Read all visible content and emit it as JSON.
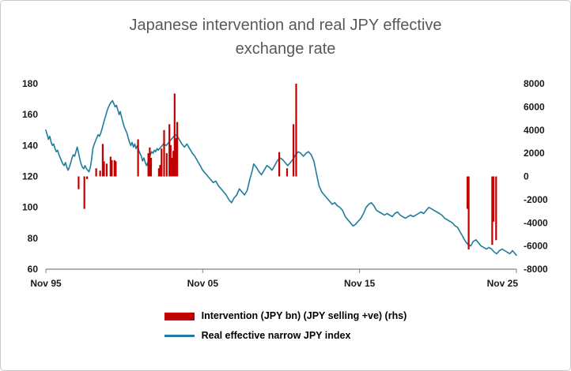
{
  "chart_data": {
    "type": "combo",
    "title": "Japanese intervention and real JPY effective exchange rate",
    "title_lines": [
      "Japanese intervention and real JPY effective",
      "exchange rate"
    ],
    "grid": false,
    "legend_position": "bottom",
    "colors": {
      "bar": "#C00000",
      "line": "#1F7C9C",
      "title_text": "#595959",
      "axis_text": "#1A1A1A"
    },
    "x_axis": {
      "range": [
        1995.8333,
        2025.8333
      ],
      "ticks": [
        {
          "x": 1995.8333,
          "label": "Nov 95"
        },
        {
          "x": 2005.8333,
          "label": "Nov 05"
        },
        {
          "x": 2015.8333,
          "label": "Nov 15"
        },
        {
          "x": 2025.8333,
          "label": "Nov 25"
        }
      ]
    },
    "left_axis": {
      "range": [
        60,
        180
      ],
      "ticks": [
        60,
        80,
        100,
        120,
        140,
        160,
        180
      ]
    },
    "right_axis": {
      "range": [
        -8000,
        8000
      ],
      "ticks": [
        -8000,
        -6000,
        -4000,
        -2000,
        0,
        2000,
        4000,
        6000,
        8000
      ]
    },
    "series": [
      {
        "name": "Intervention (JPY bn) (JPY selling +ve) (rhs)",
        "type": "bar",
        "axis": "right",
        "color": "#C00000",
        "points": [
          [
            1997.92,
            -1100
          ],
          [
            1998.29,
            -2800
          ],
          [
            1998.46,
            -230
          ],
          [
            1999.04,
            700
          ],
          [
            1999.29,
            500
          ],
          [
            1999.46,
            2800
          ],
          [
            1999.54,
            1300
          ],
          [
            1999.71,
            1100
          ],
          [
            1999.96,
            1700
          ],
          [
            2000.04,
            1400
          ],
          [
            2000.21,
            1400
          ],
          [
            2000.29,
            1300
          ],
          [
            2001.71,
            3200
          ],
          [
            2002.37,
            2000
          ],
          [
            2002.46,
            2500
          ],
          [
            2002.54,
            1600
          ],
          [
            2003.04,
            700
          ],
          [
            2003.12,
            1000
          ],
          [
            2003.21,
            2400
          ],
          [
            2003.37,
            4000
          ],
          [
            2003.54,
            2000
          ],
          [
            2003.71,
            4500
          ],
          [
            2003.79,
            2700
          ],
          [
            2003.87,
            1600
          ],
          [
            2003.96,
            2200
          ],
          [
            2004.04,
            7150
          ],
          [
            2004.12,
            3300
          ],
          [
            2004.21,
            4700
          ],
          [
            2010.71,
            2100
          ],
          [
            2011.21,
            700
          ],
          [
            2011.62,
            4500
          ],
          [
            2011.79,
            8000
          ],
          [
            2022.71,
            -2800
          ],
          [
            2022.79,
            -6300
          ],
          [
            2024.29,
            -5900
          ],
          [
            2024.37,
            -3900
          ],
          [
            2024.54,
            -5500
          ]
        ]
      },
      {
        "name": "Real effective narrow JPY index",
        "type": "line",
        "axis": "left",
        "color": "#1F7C9C",
        "points": [
          [
            1995.83,
            150
          ],
          [
            1995.92,
            147
          ],
          [
            1996.0,
            144
          ],
          [
            1996.08,
            146
          ],
          [
            1996.17,
            142
          ],
          [
            1996.25,
            140
          ],
          [
            1996.33,
            141
          ],
          [
            1996.42,
            138
          ],
          [
            1996.5,
            136
          ],
          [
            1996.58,
            137
          ],
          [
            1996.67,
            134
          ],
          [
            1996.75,
            132
          ],
          [
            1996.83,
            130
          ],
          [
            1996.92,
            128
          ],
          [
            1997.0,
            127
          ],
          [
            1997.08,
            129
          ],
          [
            1997.17,
            126
          ],
          [
            1997.25,
            124
          ],
          [
            1997.33,
            126
          ],
          [
            1997.42,
            129
          ],
          [
            1997.5,
            132
          ],
          [
            1997.58,
            134
          ],
          [
            1997.67,
            133
          ],
          [
            1997.75,
            136
          ],
          [
            1997.83,
            139
          ],
          [
            1997.92,
            135
          ],
          [
            1998.0,
            131
          ],
          [
            1998.08,
            128
          ],
          [
            1998.17,
            126
          ],
          [
            1998.25,
            125
          ],
          [
            1998.33,
            127
          ],
          [
            1998.42,
            125
          ],
          [
            1998.5,
            124
          ],
          [
            1998.58,
            123
          ],
          [
            1998.67,
            126
          ],
          [
            1998.75,
            131
          ],
          [
            1998.83,
            138
          ],
          [
            1998.92,
            141
          ],
          [
            1999.0,
            143
          ],
          [
            1999.08,
            145
          ],
          [
            1999.17,
            147
          ],
          [
            1999.25,
            146
          ],
          [
            1999.33,
            148
          ],
          [
            1999.42,
            151
          ],
          [
            1999.5,
            154
          ],
          [
            1999.58,
            157
          ],
          [
            1999.67,
            160
          ],
          [
            1999.75,
            163
          ],
          [
            1999.83,
            165
          ],
          [
            1999.92,
            167
          ],
          [
            2000.0,
            168
          ],
          [
            2000.08,
            169
          ],
          [
            2000.17,
            167
          ],
          [
            2000.25,
            165
          ],
          [
            2000.33,
            166
          ],
          [
            2000.42,
            163
          ],
          [
            2000.5,
            160
          ],
          [
            2000.58,
            162
          ],
          [
            2000.67,
            158
          ],
          [
            2000.75,
            155
          ],
          [
            2000.83,
            152
          ],
          [
            2000.92,
            150
          ],
          [
            2001.0,
            148
          ],
          [
            2001.08,
            145
          ],
          [
            2001.17,
            142
          ],
          [
            2001.25,
            140
          ],
          [
            2001.33,
            142
          ],
          [
            2001.42,
            139
          ],
          [
            2001.5,
            141
          ],
          [
            2001.58,
            138
          ],
          [
            2001.67,
            140
          ],
          [
            2001.75,
            137
          ],
          [
            2001.83,
            135
          ],
          [
            2001.92,
            133
          ],
          [
            2002.0,
            130
          ],
          [
            2002.08,
            132
          ],
          [
            2002.17,
            129
          ],
          [
            2002.25,
            127
          ],
          [
            2002.33,
            129
          ],
          [
            2002.42,
            132
          ],
          [
            2002.5,
            134
          ],
          [
            2002.58,
            136
          ],
          [
            2002.67,
            135
          ],
          [
            2002.75,
            137
          ],
          [
            2002.83,
            136
          ],
          [
            2002.92,
            138
          ],
          [
            2003.0,
            137
          ],
          [
            2003.17,
            139
          ],
          [
            2003.33,
            141
          ],
          [
            2003.5,
            140
          ],
          [
            2003.67,
            142
          ],
          [
            2003.83,
            144
          ],
          [
            2004.0,
            146
          ],
          [
            2004.17,
            147
          ],
          [
            2004.33,
            144
          ],
          [
            2004.5,
            141
          ],
          [
            2004.67,
            139
          ],
          [
            2004.83,
            141
          ],
          [
            2005.0,
            138
          ],
          [
            2005.17,
            135
          ],
          [
            2005.33,
            133
          ],
          [
            2005.5,
            130
          ],
          [
            2005.67,
            127
          ],
          [
            2005.83,
            124
          ],
          [
            2006.0,
            122
          ],
          [
            2006.17,
            120
          ],
          [
            2006.33,
            118
          ],
          [
            2006.5,
            116
          ],
          [
            2006.67,
            117
          ],
          [
            2006.83,
            114
          ],
          [
            2007.0,
            112
          ],
          [
            2007.17,
            110
          ],
          [
            2007.33,
            108
          ],
          [
            2007.5,
            105
          ],
          [
            2007.67,
            103
          ],
          [
            2007.83,
            106
          ],
          [
            2008.0,
            108
          ],
          [
            2008.17,
            112
          ],
          [
            2008.33,
            110
          ],
          [
            2008.5,
            108
          ],
          [
            2008.67,
            111
          ],
          [
            2008.83,
            118
          ],
          [
            2009.0,
            124
          ],
          [
            2009.08,
            128
          ],
          [
            2009.25,
            126
          ],
          [
            2009.42,
            123
          ],
          [
            2009.58,
            121
          ],
          [
            2009.75,
            124
          ],
          [
            2009.92,
            127
          ],
          [
            2010.08,
            126
          ],
          [
            2010.25,
            124
          ],
          [
            2010.42,
            127
          ],
          [
            2010.58,
            130
          ],
          [
            2010.75,
            132
          ],
          [
            2010.92,
            131
          ],
          [
            2011.08,
            129
          ],
          [
            2011.25,
            127
          ],
          [
            2011.42,
            129
          ],
          [
            2011.58,
            131
          ],
          [
            2011.75,
            134
          ],
          [
            2011.92,
            136
          ],
          [
            2012.08,
            135
          ],
          [
            2012.25,
            133
          ],
          [
            2012.42,
            135
          ],
          [
            2012.58,
            136
          ],
          [
            2012.75,
            134
          ],
          [
            2012.92,
            130
          ],
          [
            2013.08,
            122
          ],
          [
            2013.25,
            114
          ],
          [
            2013.42,
            110
          ],
          [
            2013.58,
            108
          ],
          [
            2013.75,
            106
          ],
          [
            2013.92,
            104
          ],
          [
            2014.08,
            102
          ],
          [
            2014.25,
            103
          ],
          [
            2014.42,
            101
          ],
          [
            2014.58,
            100
          ],
          [
            2014.75,
            98
          ],
          [
            2014.92,
            94
          ],
          [
            2015.08,
            92
          ],
          [
            2015.25,
            90
          ],
          [
            2015.42,
            88
          ],
          [
            2015.58,
            89
          ],
          [
            2015.75,
            91
          ],
          [
            2015.92,
            93
          ],
          [
            2016.08,
            96
          ],
          [
            2016.25,
            100
          ],
          [
            2016.42,
            102
          ],
          [
            2016.58,
            103
          ],
          [
            2016.75,
            101
          ],
          [
            2016.92,
            98
          ],
          [
            2017.08,
            97
          ],
          [
            2017.25,
            96
          ],
          [
            2017.42,
            95
          ],
          [
            2017.58,
            96
          ],
          [
            2017.75,
            95
          ],
          [
            2017.92,
            94
          ],
          [
            2018.08,
            96
          ],
          [
            2018.25,
            97
          ],
          [
            2018.42,
            95
          ],
          [
            2018.58,
            94
          ],
          [
            2018.75,
            93
          ],
          [
            2018.92,
            94
          ],
          [
            2019.08,
            95
          ],
          [
            2019.25,
            94
          ],
          [
            2019.42,
            95
          ],
          [
            2019.58,
            96
          ],
          [
            2019.75,
            97
          ],
          [
            2019.92,
            96
          ],
          [
            2020.08,
            98
          ],
          [
            2020.25,
            100
          ],
          [
            2020.42,
            99
          ],
          [
            2020.58,
            98
          ],
          [
            2020.75,
            97
          ],
          [
            2020.92,
            96
          ],
          [
            2021.08,
            95
          ],
          [
            2021.25,
            93
          ],
          [
            2021.42,
            92
          ],
          [
            2021.58,
            91
          ],
          [
            2021.75,
            90
          ],
          [
            2021.92,
            88
          ],
          [
            2022.08,
            87
          ],
          [
            2022.25,
            84
          ],
          [
            2022.42,
            81
          ],
          [
            2022.58,
            78
          ],
          [
            2022.75,
            76
          ],
          [
            2022.92,
            75
          ],
          [
            2023.08,
            78
          ],
          [
            2023.25,
            79
          ],
          [
            2023.42,
            77
          ],
          [
            2023.58,
            75
          ],
          [
            2023.75,
            74
          ],
          [
            2023.92,
            73
          ],
          [
            2024.08,
            74
          ],
          [
            2024.25,
            73
          ],
          [
            2024.42,
            71
          ],
          [
            2024.58,
            70
          ],
          [
            2024.75,
            72
          ],
          [
            2024.92,
            73
          ],
          [
            2025.08,
            72
          ],
          [
            2025.25,
            71
          ],
          [
            2025.42,
            70
          ],
          [
            2025.58,
            72
          ],
          [
            2025.75,
            70
          ],
          [
            2025.83,
            69
          ]
        ]
      }
    ]
  }
}
